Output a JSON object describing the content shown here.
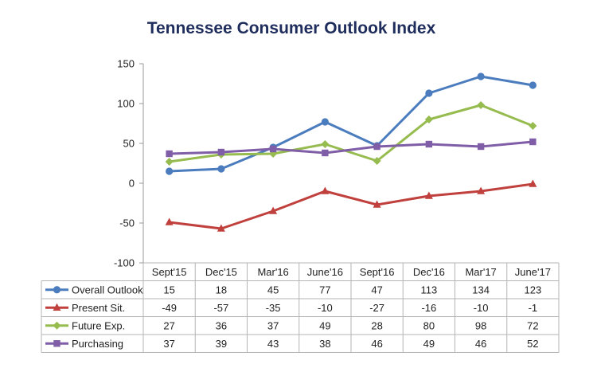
{
  "chart_data": {
    "type": "line",
    "title": "Tennessee Consumer Outlook Index",
    "xlabel": "",
    "ylabel": "",
    "categories": [
      "Sept'15",
      "Dec'15",
      "Mar'16",
      "June'16",
      "Sept'16",
      "Dec'16",
      "Mar'17",
      "June'17"
    ],
    "ylim": [
      -100,
      150
    ],
    "yticks": [
      150,
      100,
      50,
      0,
      -50,
      -100
    ],
    "grid": false,
    "legend": "data-table",
    "series": [
      {
        "name": "Overall Outlook",
        "values": [
          15,
          18,
          45,
          77,
          47,
          113,
          134,
          123
        ],
        "color": "#4a7cbe",
        "marker": "circle"
      },
      {
        "name": "Present Sit.",
        "values": [
          -49,
          -57,
          -35,
          -10,
          -27,
          -16,
          -10,
          -1
        ],
        "color": "#c0403d",
        "marker": "triangle"
      },
      {
        "name": "Future Exp.",
        "values": [
          27,
          36,
          37,
          49,
          28,
          80,
          98,
          72
        ],
        "color": "#96bb4e",
        "marker": "diamond"
      },
      {
        "name": "Purchasing",
        "values": [
          37,
          39,
          43,
          38,
          46,
          49,
          46,
          52
        ],
        "color": "#7f5ea7",
        "marker": "square"
      }
    ]
  }
}
